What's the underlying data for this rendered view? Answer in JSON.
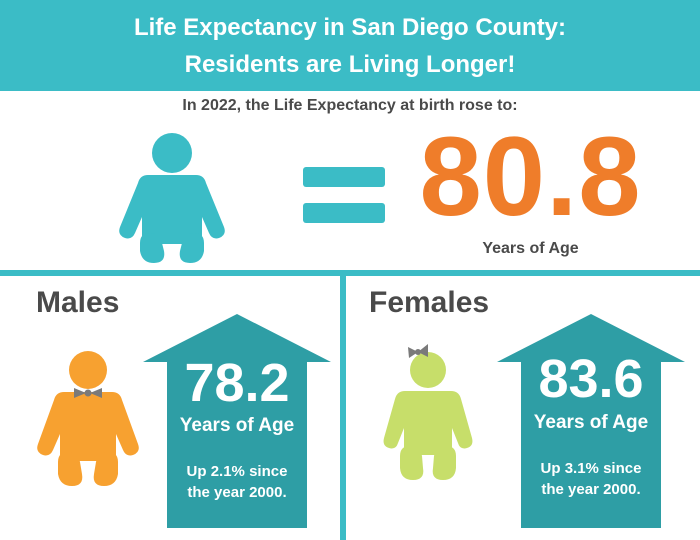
{
  "header": {
    "title_line1": "Life Expectancy in San Diego County:",
    "title_line2": "Residents are Living Longer!"
  },
  "overall": {
    "intro": "In 2022, the Life Expectancy at birth rose to:",
    "value": "80.8",
    "unit": "Years of Age"
  },
  "males": {
    "title": "Males",
    "value": "78.2",
    "unit": "Years of Age",
    "note_line1": "Up 2.1% since",
    "note_line2": "the year 2000."
  },
  "females": {
    "title": "Females",
    "value": "83.6",
    "unit": "Years of Age",
    "note_line1": "Up 3.1% since",
    "note_line2": "the year 2000."
  },
  "colors": {
    "teal": "#3bbcc6",
    "dark_teal": "#2e9ea5",
    "orange": "#ef7d2a",
    "baby_orange": "#f7a130",
    "baby_green": "#c7de6a",
    "text_gray": "#4a4a4a"
  },
  "icons": [
    "baby-icon",
    "equals-icon",
    "arrow-up-icon",
    "bowtie-icon",
    "hair-bow-icon"
  ]
}
